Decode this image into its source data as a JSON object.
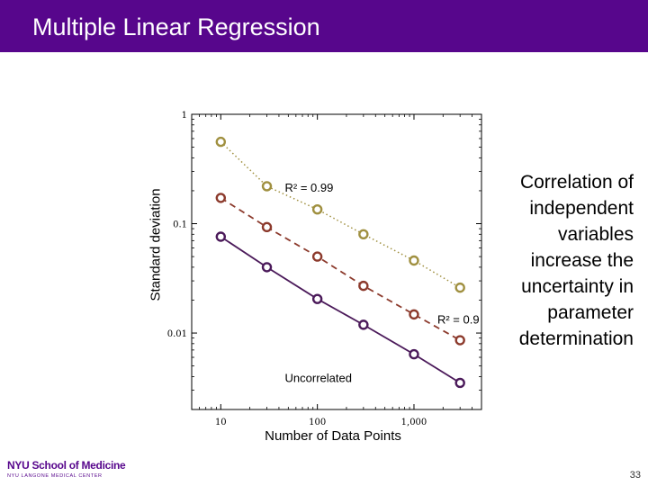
{
  "slide": {
    "title": "Multiple Linear Regression",
    "page_number": "33",
    "side_text": "Correlation of independent variables increase the uncertainty in parameter determination",
    "logo_text": "NYU School of Medicine",
    "logo_subtext": "NYU LANGONE MEDICAL CENTER",
    "title_bar_color": "#57068c"
  },
  "chart_data": {
    "type": "line",
    "xlabel": "Number of Data Points",
    "ylabel": "Standard deviation",
    "xscale": "log",
    "yscale": "log",
    "xlim": [
      5,
      5000
    ],
    "ylim": [
      0.002,
      1
    ],
    "xticks": [
      10,
      100,
      1000
    ],
    "yticks": [
      0.01,
      0.1,
      1
    ],
    "x": [
      10,
      30,
      100,
      300,
      1000,
      3000
    ],
    "series": [
      {
        "values": [
          0.56,
          0.22,
          0.135,
          0.08,
          0.046,
          0.026
        ],
        "color": "#a09040",
        "style": "dotted"
      },
      {
        "values": [
          0.172,
          0.093,
          0.05,
          0.027,
          0.0148,
          0.0086
        ],
        "color": "#8c3a2c",
        "style": "dashed"
      },
      {
        "values": [
          0.076,
          0.04,
          0.0205,
          0.0119,
          0.0064,
          0.0035
        ],
        "color": "#4b1a5a",
        "style": "solid"
      }
    ],
    "annotations": [
      {
        "text": "R² = 0.99",
        "x": 30,
        "y": 0.22
      },
      {
        "text": "R² = 0.9",
        "x": 1000,
        "y": 0.0148
      },
      {
        "text": "Uncorrelated",
        "x": 30,
        "y": 0.0064
      }
    ],
    "grid": false,
    "legend": "none"
  }
}
